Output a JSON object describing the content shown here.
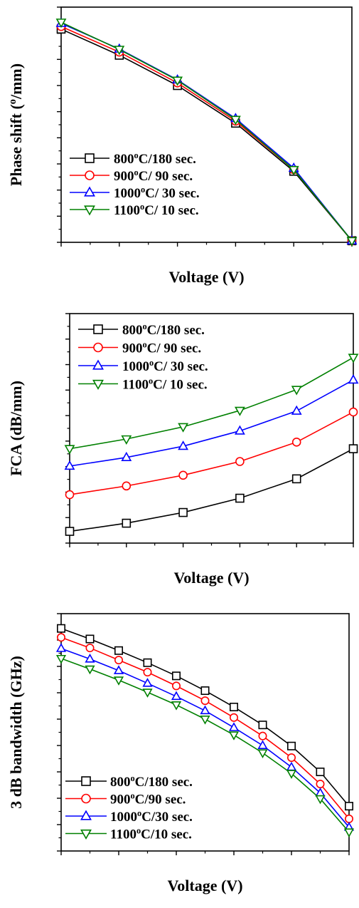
{
  "chart_data": [
    {
      "type": "line",
      "xlabel": "Voltage (V)",
      "ylabel": "Phase shift (o/mm)",
      "xlim": [
        -5,
        0
      ],
      "ylim": [
        0,
        45
      ],
      "xticks": [
        "-5",
        "-4",
        "-3",
        "-2",
        "-1",
        "0"
      ],
      "yticks": [
        "0",
        "5",
        "10",
        "15",
        "20",
        "25",
        "30",
        "35",
        "40",
        "45"
      ],
      "legend_position": "bottom-left",
      "x": [
        -5,
        -4,
        -3,
        -2,
        -1,
        0
      ],
      "series": [
        {
          "name": "800oC/180 sec.",
          "color": "#000000",
          "marker": "square",
          "values": [
            40.8,
            35.8,
            30.0,
            22.8,
            13.6,
            0.3
          ]
        },
        {
          "name": "900oC/ 90 sec.",
          "color": "#ff0000",
          "marker": "circle",
          "values": [
            41.3,
            36.4,
            30.5,
            23.2,
            13.9,
            0.3
          ]
        },
        {
          "name": "1000oC/ 30 sec.",
          "color": "#0000ff",
          "marker": "triangle-up",
          "values": [
            41.9,
            37.0,
            31.1,
            23.7,
            14.2,
            0.3
          ]
        },
        {
          "name": "1100oC/ 10 sec.",
          "color": "#008000",
          "marker": "triangle-down",
          "values": [
            42.1,
            36.9,
            31.0,
            23.5,
            13.9,
            0.3
          ]
        }
      ]
    },
    {
      "type": "line",
      "xlabel": "Voltage (V)",
      "ylabel": "FCA (dB/mm)",
      "xlim": [
        -5,
        0
      ],
      "ylim": [
        1.35,
        1.8
      ],
      "xticks": [
        "-5",
        "-4",
        "-3",
        "-2",
        "-1",
        "0"
      ],
      "yticks": [
        "1.35",
        "1.40",
        "1.45",
        "1.50",
        "1.55",
        "1.60",
        "1.65",
        "1.70",
        "1.75",
        "1.80"
      ],
      "legend_position": "top-left",
      "x": [
        -5,
        -4,
        -3,
        -2,
        -1,
        0
      ],
      "series": [
        {
          "name": "800oC/180 sec.",
          "color": "#000000",
          "marker": "square",
          "values": [
            1.373,
            1.389,
            1.41,
            1.438,
            1.476,
            1.535
          ]
        },
        {
          "name": "900oC/ 90 sec.",
          "color": "#ff0000",
          "marker": "circle",
          "values": [
            1.445,
            1.462,
            1.483,
            1.51,
            1.548,
            1.607
          ]
        },
        {
          "name": "1000oC/ 30 sec.",
          "color": "#0000ff",
          "marker": "triangle-up",
          "values": [
            1.501,
            1.518,
            1.54,
            1.57,
            1.609,
            1.67
          ]
        },
        {
          "name": "1100oC/ 10 sec.",
          "color": "#008000",
          "marker": "triangle-down",
          "values": [
            1.535,
            1.554,
            1.578,
            1.61,
            1.651,
            1.714
          ]
        }
      ]
    },
    {
      "type": "line",
      "xlabel": "Voltage (V)",
      "ylabel": "3 dB bandwidth (GHz)",
      "xlim": [
        -5,
        0
      ],
      "ylim": [
        3.5,
        8.0
      ],
      "xticks": [
        "-5",
        "-4",
        "-3",
        "-2",
        "-1",
        "0"
      ],
      "yticks": [
        "3.5",
        "4.0",
        "4.5",
        "5.0",
        "5.5",
        "6.0",
        "6.5",
        "7.0",
        "7.5",
        "8.0"
      ],
      "legend_position": "bottom-left",
      "x": [
        -5,
        -4.5,
        -4,
        -3.5,
        -3,
        -2.5,
        -2,
        -1.5,
        -1,
        -0.5,
        0
      ],
      "series": [
        {
          "name": "800oC/180 sec.",
          "color": "#000000",
          "marker": "square",
          "values": [
            7.72,
            7.52,
            7.3,
            7.07,
            6.82,
            6.54,
            6.23,
            5.89,
            5.49,
            5.0,
            4.35
          ]
        },
        {
          "name": "900oC/90 sec.",
          "color": "#ff0000",
          "marker": "circle",
          "values": [
            7.55,
            7.35,
            7.12,
            6.89,
            6.63,
            6.35,
            6.03,
            5.68,
            5.27,
            4.77,
            4.11
          ]
        },
        {
          "name": "1000oC/30 sec.",
          "color": "#0000ff",
          "marker": "triangle-up",
          "values": [
            7.34,
            7.14,
            6.92,
            6.68,
            6.43,
            6.16,
            5.84,
            5.5,
            5.09,
            4.6,
            3.95
          ]
        },
        {
          "name": "1100oC/10 sec.",
          "color": "#008000",
          "marker": "triangle-down",
          "values": [
            7.15,
            6.95,
            6.74,
            6.51,
            6.27,
            6.0,
            5.7,
            5.36,
            4.97,
            4.49,
            3.86
          ]
        }
      ]
    }
  ]
}
